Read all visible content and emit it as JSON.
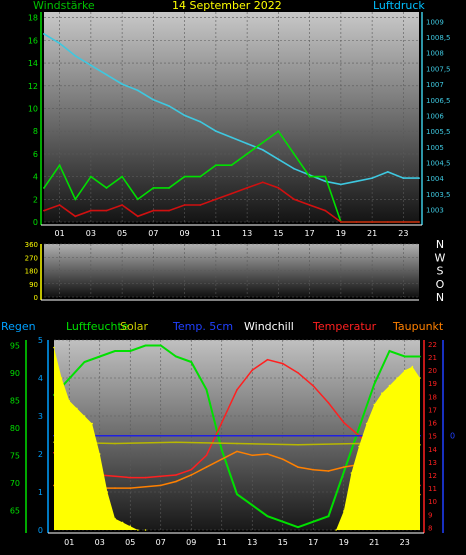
{
  "chart_data": [
    {
      "type": "line",
      "title": "14 September 2022",
      "legend_left": "Windstärke",
      "legend_right": "Luftdruck",
      "x_ticks": [
        "01",
        "03",
        "05",
        "07",
        "09",
        "11",
        "13",
        "15",
        "17",
        "19",
        "21",
        "23"
      ],
      "y_left_ticks": [
        "0",
        "2",
        "4",
        "6",
        "8",
        "10",
        "12",
        "14",
        "16",
        "18"
      ],
      "y_left_range": [
        0,
        18.5
      ],
      "y_right_ticks": [
        "1003",
        "1003,5",
        "1004",
        "1004,5",
        "1005",
        "1005,5",
        "1006",
        "1006,5",
        "1007",
        "1007,5",
        "1008",
        "1008,5",
        "1009"
      ],
      "y_right_range": [
        1002.6,
        1009.3
      ],
      "series": [
        {
          "name": "Luftdruck",
          "color": "#3ec8e0",
          "axis": "right",
          "x": [
            0,
            1,
            2,
            3,
            4,
            5,
            6,
            7,
            8,
            9,
            10,
            11,
            12,
            13,
            14,
            15,
            16,
            17,
            18,
            19,
            20,
            21,
            22,
            23,
            24
          ],
          "y": [
            1008.6,
            1008.3,
            1007.9,
            1007.6,
            1007.3,
            1007.0,
            1006.8,
            1006.5,
            1006.3,
            1006.0,
            1005.8,
            1005.5,
            1005.3,
            1005.1,
            1004.9,
            1004.6,
            1004.3,
            1004.1,
            1003.9,
            1003.8,
            1003.9,
            1004.0,
            1004.2,
            1004.0,
            1004.0
          ]
        },
        {
          "name": "Windstärke",
          "color": "#00e000",
          "axis": "left",
          "x": [
            0,
            1,
            2,
            3,
            4,
            5,
            6,
            7,
            8,
            9,
            10,
            11,
            12,
            13,
            14,
            15,
            16,
            17,
            18,
            19,
            20,
            21,
            22,
            23,
            24
          ],
          "y": [
            3,
            5,
            2,
            4,
            3,
            4,
            2,
            3,
            3,
            4,
            4,
            5,
            5,
            6,
            7,
            8,
            6,
            4,
            4,
            0,
            0,
            0,
            0,
            0,
            0
          ]
        },
        {
          "name": "Windstärke-gust",
          "color": "#d01010",
          "axis": "left",
          "x": [
            0,
            1,
            2,
            3,
            4,
            5,
            6,
            7,
            8,
            9,
            10,
            11,
            12,
            13,
            14,
            15,
            16,
            17,
            18,
            19,
            20,
            21,
            22,
            23,
            24
          ],
          "y": [
            1,
            1.5,
            0.5,
            1,
            1,
            1.5,
            0.5,
            1,
            1,
            1.5,
            1.5,
            2,
            2.5,
            3,
            3.5,
            3,
            2,
            1.5,
            1,
            0,
            0,
            0,
            0,
            0,
            0
          ]
        }
      ]
    },
    {
      "type": "line",
      "title": "",
      "y_left_ticks": [
        "0",
        "90",
        "180",
        "270",
        "360"
      ],
      "y_right_ticks": [
        "N",
        "O",
        "S",
        "W",
        "N"
      ],
      "x_ticks": [
        "01",
        "03",
        "05",
        "07",
        "09",
        "11",
        "13",
        "15",
        "17",
        "19",
        "21",
        "23"
      ]
    },
    {
      "type": "line",
      "legend": [
        {
          "label": "Regen",
          "color": "#00a0ff"
        },
        {
          "label": "Luftfeuchte",
          "color": "#00e000"
        },
        {
          "label": "Solar",
          "color": "#d0d000"
        },
        {
          "label": "Temp. 5cm",
          "color": "#2020e0"
        },
        {
          "label": "Windchill",
          "color": "#ffffff"
        },
        {
          "label": "Temperatur",
          "color": "#ff2020"
        },
        {
          "label": "Taupunkt",
          "color": "#ff8000"
        }
      ],
      "x_ticks": [
        "01",
        "03",
        "05",
        "07",
        "09",
        "11",
        "13",
        "15",
        "17",
        "19",
        "21",
        "23"
      ],
      "y_left_ticks": [
        "65",
        "70",
        "75",
        "80",
        "85",
        "90",
        "95"
      ],
      "y_left_range": [
        61.5,
        96
      ],
      "y_rain_ticks": [
        "0",
        "1",
        "2",
        "3",
        "4",
        "5"
      ],
      "y_right_ticks": [
        "8",
        "9",
        "10",
        "11",
        "12",
        "13",
        "14",
        "15",
        "16",
        "17",
        "18",
        "19",
        "20",
        "21",
        "22"
      ],
      "y_right_range": [
        7.8,
        22.3
      ],
      "y_far_right_ticks": [
        "0"
      ],
      "series": [
        {
          "name": "Luftfeuchte",
          "color": "#00e000",
          "axis": "humidity",
          "x": [
            0,
            1,
            2,
            3,
            4,
            5,
            6,
            7,
            8,
            9,
            10,
            11,
            12,
            13,
            14,
            15,
            16,
            17,
            18,
            19,
            20,
            21,
            22,
            23,
            24
          ],
          "y": [
            86,
            89,
            92,
            93,
            94,
            94,
            95,
            95,
            93,
            92,
            87,
            76,
            68,
            66,
            64,
            63,
            62,
            63,
            64,
            72,
            80,
            88,
            94,
            93,
            93
          ]
        },
        {
          "name": "Temperatur",
          "color": "#ff2020",
          "axis": "temp",
          "x": [
            0,
            1,
            2,
            3,
            4,
            5,
            6,
            7,
            8,
            9,
            10,
            11,
            12,
            13,
            14,
            15,
            16,
            17,
            18,
            19,
            20,
            21,
            22,
            23,
            24
          ],
          "y": [
            13.7,
            13.0,
            12.4,
            12.0,
            11.9,
            11.8,
            11.8,
            11.9,
            12.0,
            12.4,
            13.5,
            16.0,
            18.5,
            20.0,
            20.8,
            20.5,
            19.8,
            18.8,
            17.5,
            16.0,
            15.0,
            14.0,
            13.0,
            12.0,
            11.2
          ]
        },
        {
          "name": "Taupunkt",
          "color": "#ff8000",
          "axis": "temp",
          "x": [
            0,
            1,
            2,
            3,
            4,
            5,
            6,
            7,
            8,
            9,
            10,
            11,
            12,
            13,
            14,
            15,
            16,
            17,
            18,
            19,
            20,
            21,
            22,
            23,
            24
          ],
          "y": [
            11.2,
            11.0,
            10.9,
            11.0,
            11.0,
            11.0,
            11.1,
            11.2,
            11.5,
            12.0,
            12.6,
            13.2,
            13.8,
            13.5,
            13.6,
            13.2,
            12.6,
            12.4,
            12.3,
            12.6,
            12.8,
            12.3,
            11.8,
            11.0,
            10.5
          ]
        },
        {
          "name": "Temp. 5cm",
          "color": "#2020e0",
          "axis": "temp",
          "x": [
            0,
            24
          ],
          "y": [
            15.0,
            15.0
          ]
        },
        {
          "name": "Solar",
          "color": "#b8b800",
          "axis": "temp",
          "x": [
            0,
            4,
            8,
            12,
            16,
            20,
            24
          ],
          "y": [
            14.5,
            14.4,
            14.5,
            14.4,
            14.3,
            14.4,
            14.3
          ]
        },
        {
          "name": "Regen",
          "color": "#ffff00",
          "axis": "rain",
          "x": [
            0,
            0.5,
            1,
            1.5,
            2,
            2.5,
            3,
            3.5,
            4,
            4.5,
            5,
            5.5,
            6,
            18.5,
            19,
            19.5,
            20,
            20.5,
            21,
            21.5,
            22,
            22.5,
            23,
            23.5,
            24
          ],
          "y": [
            4.8,
            4.0,
            3.4,
            3.2,
            3.0,
            2.8,
            2.0,
            1.0,
            0.3,
            0.2,
            0.1,
            0,
            0,
            0,
            0.5,
            1.5,
            2.2,
            2.8,
            3.3,
            3.6,
            3.8,
            4.0,
            4.2,
            4.3,
            4.0
          ]
        }
      ]
    }
  ]
}
